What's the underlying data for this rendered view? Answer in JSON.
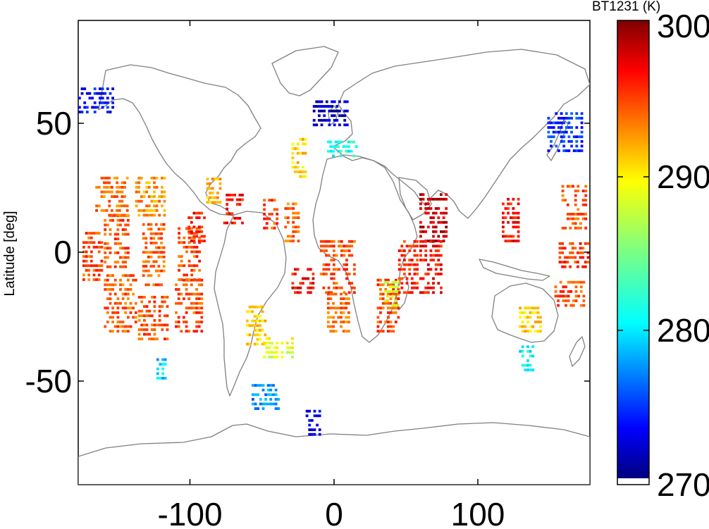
{
  "chart_data": {
    "type": "heatmap",
    "title": "",
    "xlabel": "",
    "ylabel": "Latitude [deg]",
    "xlim": [
      -180,
      180
    ],
    "ylim": [
      -90,
      90
    ],
    "xticks": [
      -100,
      0,
      100
    ],
    "yticks": [
      50,
      0,
      -50
    ],
    "colorbar": {
      "label": "BT1231 (K)",
      "range": [
        270,
        300
      ],
      "ticks": [
        300,
        290,
        280,
        270
      ],
      "colormap": "jet"
    },
    "basemap": "world coastlines",
    "coast_color": "#808080",
    "regions": [
      {
        "lon": [
          -162,
          -140
        ],
        "lat": [
          -30,
          -8
        ],
        "bt": 293.5
      },
      {
        "lon": [
          -162,
          -145
        ],
        "lat": [
          -5,
          15
        ],
        "bt": 294
      },
      {
        "lon": [
          -177,
          -164
        ],
        "lat": [
          -10,
          8
        ],
        "bt": 294
      },
      {
        "lon": [
          -168,
          -145
        ],
        "lat": [
          15,
          30
        ],
        "bt": 293
      },
      {
        "lon": [
          -138,
          -118
        ],
        "lat": [
          -33,
          -15
        ],
        "bt": 294
      },
      {
        "lon": [
          -135,
          -120
        ],
        "lat": [
          -12,
          12
        ],
        "bt": 293.5
      },
      {
        "lon": [
          -140,
          -120
        ],
        "lat": [
          15,
          30
        ],
        "bt": 292
      },
      {
        "lon": [
          -112,
          -94
        ],
        "lat": [
          -30,
          -10
        ],
        "bt": 294
      },
      {
        "lon": [
          -110,
          -94
        ],
        "lat": [
          -10,
          10
        ],
        "bt": 294
      },
      {
        "lon": [
          -103,
          -92
        ],
        "lat": [
          5,
          17
        ],
        "bt": 296
      },
      {
        "lon": [
          -78,
          -65
        ],
        "lat": [
          12,
          24
        ],
        "bt": 296
      },
      {
        "lon": [
          -90,
          -80
        ],
        "lat": [
          20,
          30
        ],
        "bt": 291
      },
      {
        "lon": [
          -62,
          -48
        ],
        "lat": [
          -35,
          -20
        ],
        "bt": 290
      },
      {
        "lon": [
          -50,
          -30
        ],
        "lat": [
          -40,
          -32
        ],
        "bt": 288
      },
      {
        "lon": [
          -58,
          -40
        ],
        "lat": [
          -60,
          -50
        ],
        "bt": 278
      },
      {
        "lon": [
          -30,
          -15
        ],
        "lat": [
          -15,
          -5
        ],
        "bt": 296
      },
      {
        "lon": [
          -35,
          -25
        ],
        "lat": [
          5,
          20
        ],
        "bt": 293
      },
      {
        "lon": [
          -50,
          -40
        ],
        "lat": [
          10,
          22
        ],
        "bt": 294
      },
      {
        "lon": [
          -30,
          -20
        ],
        "lat": [
          30,
          45
        ],
        "bt": 290
      },
      {
        "lon": [
          -10,
          15
        ],
        "lat": [
          -15,
          5
        ],
        "bt": 294
      },
      {
        "lon": [
          -5,
          10
        ],
        "lat": [
          -30,
          -15
        ],
        "bt": 293
      },
      {
        "lon": [
          30,
          45
        ],
        "lat": [
          -30,
          -10
        ],
        "bt": 294
      },
      {
        "lon": [
          35,
          45
        ],
        "lat": [
          -20,
          -10
        ],
        "bt": 288
      },
      {
        "lon": [
          60,
          78
        ],
        "lat": [
          5,
          24
        ],
        "bt": 298
      },
      {
        "lon": [
          60,
          75
        ],
        "lat": [
          -15,
          5
        ],
        "bt": 296
      },
      {
        "lon": [
          45,
          58
        ],
        "lat": [
          -15,
          5
        ],
        "bt": 295
      },
      {
        "lon": [
          118,
          130
        ],
        "lat": [
          5,
          22
        ],
        "bt": 296
      },
      {
        "lon": [
          158,
          178
        ],
        "lat": [
          -5,
          5
        ],
        "bt": 295
      },
      {
        "lon": [
          160,
          178
        ],
        "lat": [
          10,
          28
        ],
        "bt": 294
      },
      {
        "lon": [
          130,
          145
        ],
        "lat": [
          -30,
          -20
        ],
        "bt": 290
      },
      {
        "lon": [
          155,
          175
        ],
        "lat": [
          -20,
          -10
        ],
        "bt": 294
      },
      {
        "lon": [
          -5,
          15
        ],
        "lat": [
          38,
          45
        ],
        "bt": 282
      },
      {
        "lon": [
          -15,
          10
        ],
        "lat": [
          50,
          60
        ],
        "bt": 272
      },
      {
        "lon": [
          -180,
          -155
        ],
        "lat": [
          55,
          65
        ],
        "bt": 274
      },
      {
        "lon": [
          -125,
          -118
        ],
        "lat": [
          -50,
          -40
        ],
        "bt": 280
      },
      {
        "lon": [
          -20,
          -10
        ],
        "lat": [
          -70,
          -60
        ],
        "bt": 273
      },
      {
        "lon": [
          150,
          175
        ],
        "lat": [
          40,
          55
        ],
        "bt": 275
      },
      {
        "lon": [
          130,
          140
        ],
        "lat": [
          -45,
          -35
        ],
        "bt": 281
      }
    ]
  }
}
